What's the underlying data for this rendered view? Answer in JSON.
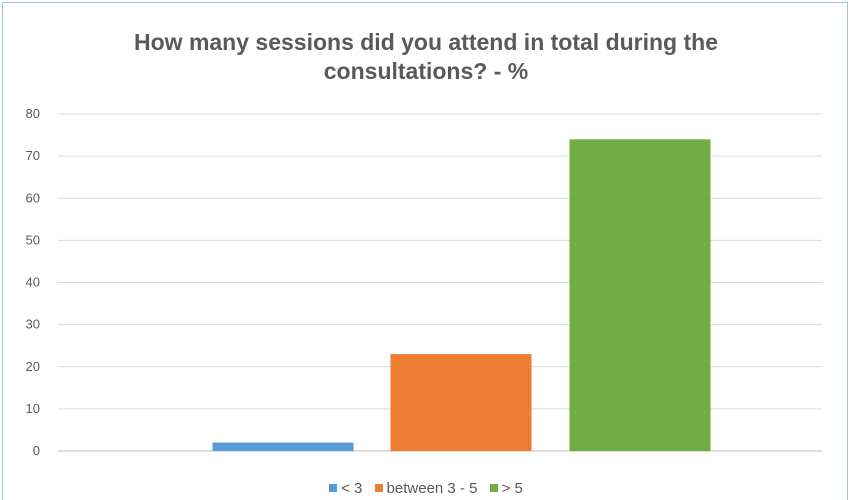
{
  "chart_data": {
    "type": "bar",
    "title": "How many sessions did you attend in total during the consultations? - %",
    "title_lines": [
      "How many sessions did you attend in total during the",
      "consultations? - %"
    ],
    "series": [
      {
        "name": "< 3",
        "value": 2,
        "color": "#5b9bd5"
      },
      {
        "name": "between 3 - 5",
        "value": 23,
        "color": "#ed7d31"
      },
      {
        "name": "> 5",
        "value": 74,
        "color": "#70ad47"
      }
    ],
    "y_ticks": [
      "0",
      "10",
      "20",
      "30",
      "40",
      "50",
      "60",
      "70",
      "80"
    ],
    "ylim": [
      0,
      80
    ],
    "grid": true,
    "legend_position": "bottom",
    "gridline_color": "#d9d9d9",
    "axis_color": "#bfbfbf"
  }
}
